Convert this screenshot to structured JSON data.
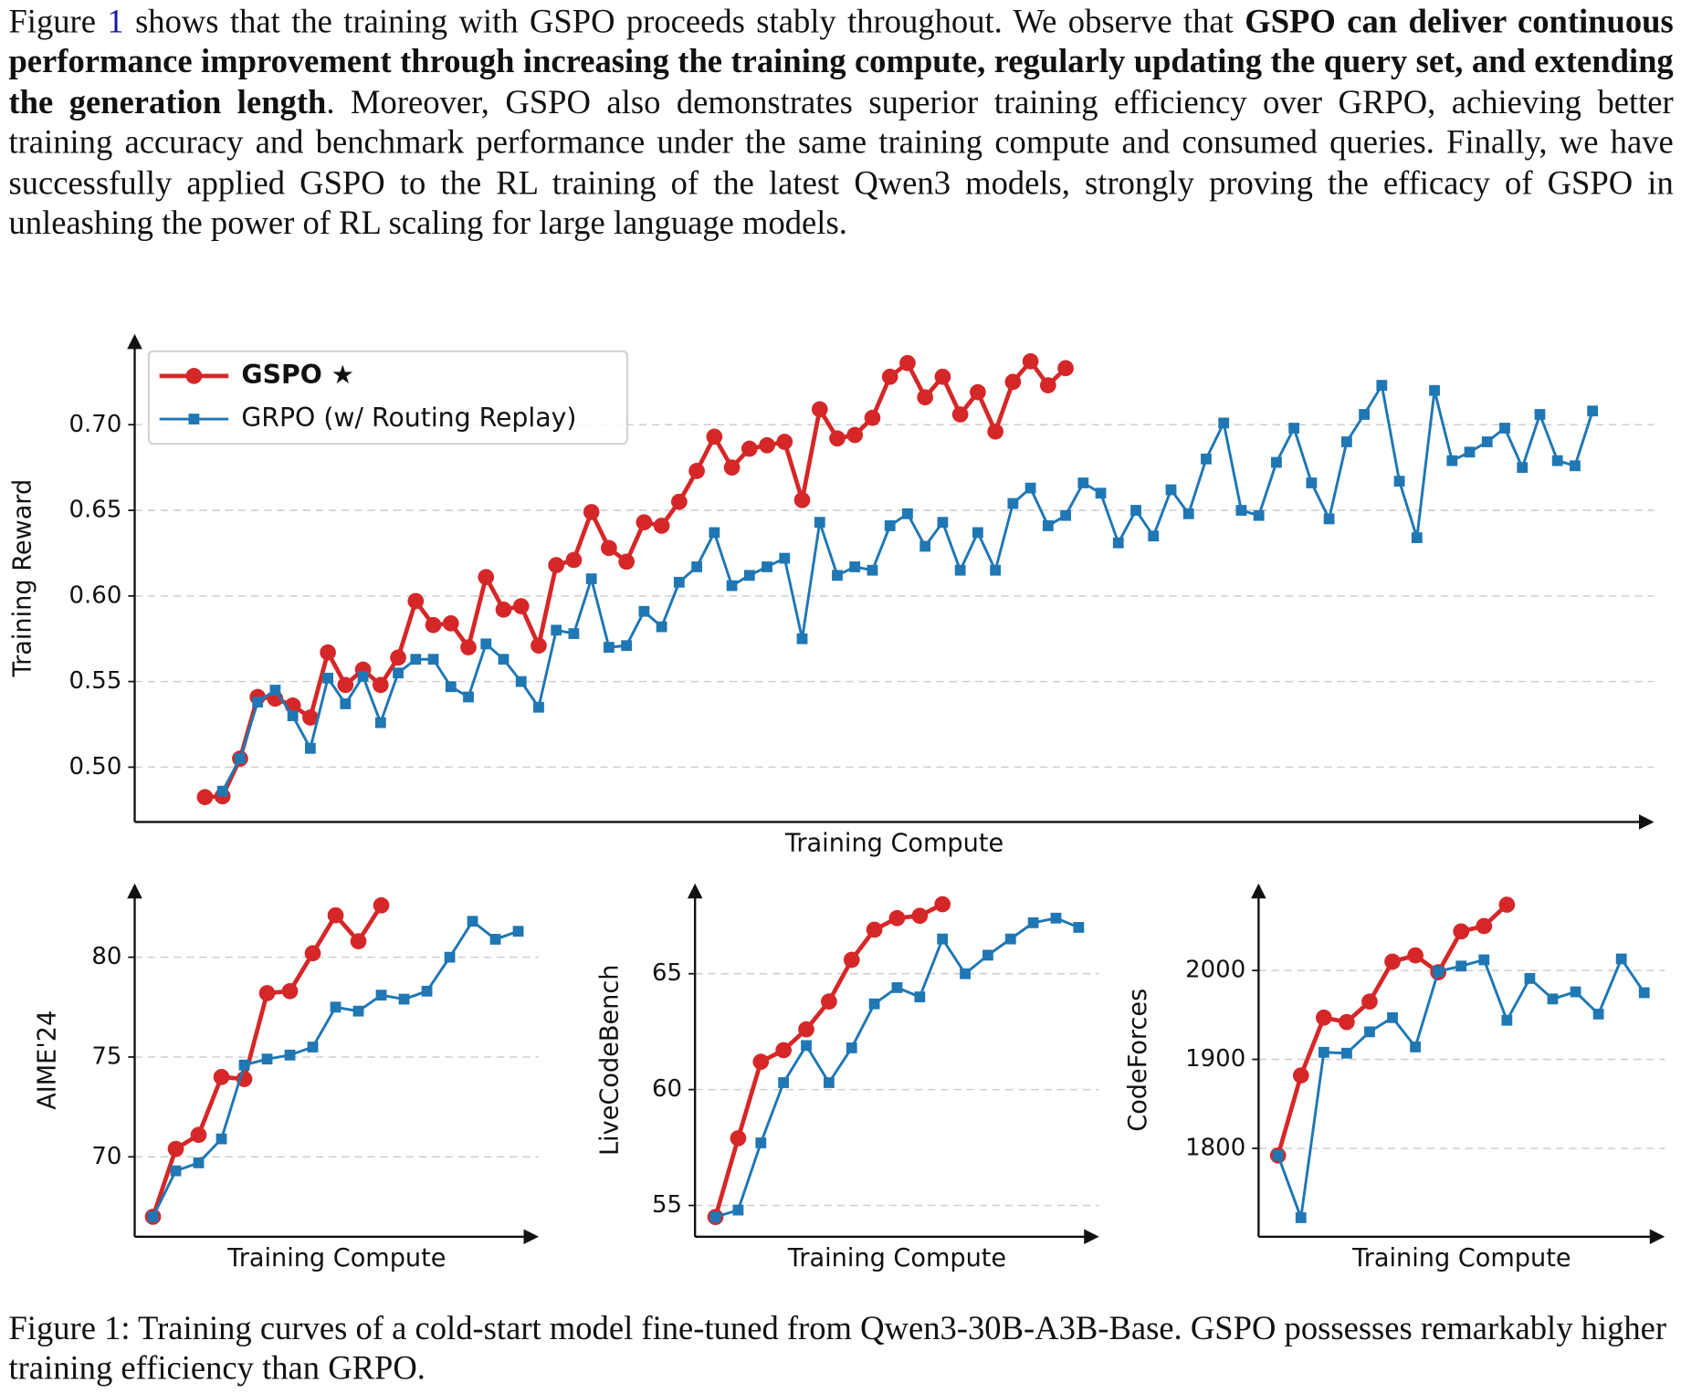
{
  "text": {
    "paragraph": [
      "Figure ",
      "1",
      " shows that the training with GSPO proceeds stably throughout. We observe that ",
      "GSPO can deliver continuous performance improvement through increasing the training compute, regularly updating the query set, and extending the generation length",
      ". Moreover, GSPO also demonstrates superior training efficiency over GRPO, achieving better training accuracy and benchmark performance under the same training compute and consumed queries. Finally, we have successfully applied GSPO to the RL training of the latest Qwen3 models, strongly proving the efficacy of GSPO in unleashing the power of RL scaling for large language models."
    ],
    "caption": "Figure 1: Training curves of a cold-start model fine-tuned from Qwen3-30B-A3B-Base. GSPO possesses remarkably higher training efficiency than GRPO."
  },
  "chart_data": [
    {
      "type": "line",
      "xlabel": "Training Compute",
      "ylabel": "Training Reward",
      "legend": "upper left",
      "grid": true,
      "x": [
        0,
        1,
        2,
        3,
        4,
        5,
        6,
        7,
        8,
        9,
        10,
        11,
        12,
        13,
        14,
        15,
        16,
        17,
        18,
        19,
        20,
        21,
        22,
        23,
        24,
        25,
        26,
        27,
        28,
        29,
        30,
        31,
        32,
        33,
        34,
        35,
        36,
        37,
        38,
        39,
        40,
        41,
        42,
        43,
        44,
        45,
        46,
        47,
        48,
        49,
        50,
        51,
        52,
        53,
        54,
        55,
        56,
        57,
        58,
        59,
        60,
        61,
        62,
        63,
        64,
        65,
        66,
        67,
        68,
        69,
        70,
        71,
        72,
        73,
        74,
        75,
        76,
        77,
        78,
        79
      ],
      "xlim": [
        -4,
        82.5
      ],
      "ylim": [
        0.468,
        0.753
      ],
      "yticks": [
        {
          "value": 0.5,
          "label": "0.50"
        },
        0.55,
        {
          "value": 0.6,
          "label": "0.60"
        },
        0.65,
        {
          "value": 0.7,
          "label": "0.70"
        }
      ],
      "series": [
        {
          "name": "GSPO ★",
          "color": "#d62728",
          "marker": "o",
          "values": [
            0.4825,
            0.483,
            0.505,
            0.541,
            0.54,
            0.536,
            0.529,
            0.567,
            0.548,
            0.557,
            0.548,
            0.564,
            0.597,
            0.583,
            0.584,
            0.57,
            0.611,
            0.592,
            0.594,
            0.571,
            0.618,
            0.621,
            0.649,
            0.628,
            0.62,
            0.643,
            0.641,
            0.655,
            0.673,
            0.693,
            0.675,
            0.686,
            0.688,
            0.69,
            0.656,
            0.709,
            0.692,
            0.694,
            0.704,
            0.728,
            0.736,
            0.716,
            0.728,
            0.706,
            0.719,
            0.696,
            0.725,
            0.737,
            0.723,
            0.733,
            null,
            null,
            null,
            null,
            null,
            null,
            null,
            null,
            null,
            null,
            null,
            null,
            null,
            null,
            null,
            null,
            null,
            null,
            null,
            null,
            null,
            null,
            null,
            null,
            null,
            null,
            null,
            null,
            null,
            null
          ]
        },
        {
          "name": "GRPO (w/ Routing Replay)",
          "color": "#1f77b4",
          "marker": "s",
          "values": [
            null,
            0.486,
            0.505,
            0.538,
            0.545,
            0.53,
            0.511,
            0.552,
            0.537,
            0.553,
            0.526,
            0.555,
            0.563,
            0.563,
            0.547,
            0.541,
            0.572,
            0.563,
            0.55,
            0.535,
            0.58,
            0.578,
            0.61,
            0.57,
            0.571,
            0.591,
            0.582,
            0.608,
            0.617,
            0.637,
            0.606,
            0.612,
            0.617,
            0.622,
            0.575,
            0.643,
            0.612,
            0.617,
            0.615,
            0.641,
            0.648,
            0.629,
            0.643,
            0.615,
            0.637,
            0.615,
            0.654,
            0.663,
            0.641,
            0.647,
            0.666,
            0.66,
            0.631,
            0.65,
            0.635,
            0.662,
            0.648,
            0.68,
            0.701,
            0.65,
            0.647,
            0.678,
            0.698,
            0.666,
            0.645,
            0.69,
            0.706,
            0.723,
            0.667,
            0.634,
            0.72,
            0.679,
            0.684,
            0.69,
            0.698,
            0.675,
            0.706,
            0.679,
            0.676,
            0.708
          ]
        }
      ]
    },
    {
      "type": "line",
      "xlabel": "Training Compute",
      "ylabel": "AIME'24",
      "grid": true,
      "x": [
        0,
        1,
        2,
        3,
        4,
        5,
        6,
        7,
        8,
        9,
        10,
        11,
        12,
        13,
        14,
        15,
        16
      ],
      "xlim": [
        -0.8,
        16.9
      ],
      "ylim": [
        66.0,
        83.7
      ],
      "yticks": [
        70,
        75,
        80
      ],
      "series": [
        {
          "color": "#d62728",
          "marker": "o",
          "values": [
            67.0,
            70.4,
            71.1,
            74.0,
            73.9,
            78.2,
            78.3,
            80.2,
            82.1,
            80.8,
            82.6,
            null,
            null,
            null,
            null,
            null,
            null
          ]
        },
        {
          "color": "#1f77b4",
          "marker": "s",
          "values": [
            67.0,
            69.3,
            69.7,
            70.9,
            74.6,
            74.9,
            75.1,
            75.5,
            77.5,
            77.3,
            78.1,
            77.9,
            78.3,
            80.0,
            81.8,
            80.9,
            81.3
          ]
        }
      ]
    },
    {
      "type": "line",
      "xlabel": "Training Compute",
      "ylabel": "LiveCodeBench",
      "grid": true,
      "x": [
        0,
        1,
        2,
        3,
        4,
        5,
        6,
        7,
        8,
        9,
        10,
        11,
        12,
        13,
        14,
        15,
        16
      ],
      "xlim": [
        -0.9,
        16.9
      ],
      "ylim": [
        53.65,
        68.9
      ],
      "yticks": [
        55,
        60,
        65
      ],
      "series": [
        {
          "color": "#d62728",
          "marker": "o",
          "values": [
            54.5,
            57.9,
            61.2,
            61.7,
            62.6,
            63.8,
            65.6,
            66.9,
            67.4,
            67.5,
            68.0,
            null,
            null,
            null,
            null,
            null,
            null
          ]
        },
        {
          "color": "#1f77b4",
          "marker": "s",
          "values": [
            54.5,
            54.8,
            57.7,
            60.3,
            61.9,
            60.3,
            61.8,
            63.7,
            64.4,
            64.0,
            66.5,
            65.0,
            65.8,
            66.5,
            67.2,
            67.4,
            67.0
          ]
        }
      ]
    },
    {
      "type": "line",
      "xlabel": "Training Compute",
      "ylabel": "CodeForces",
      "grid": true,
      "x": [
        0,
        1,
        2,
        3,
        4,
        5,
        6,
        7,
        8,
        9,
        10,
        11,
        12,
        13,
        14,
        15,
        16
      ],
      "xlim": [
        -0.85,
        16.9
      ],
      "ylim": [
        1700.6,
        2098
      ],
      "yticks": [
        1800,
        1900,
        2000
      ],
      "series": [
        {
          "color": "#d62728",
          "marker": "o",
          "values": [
            1792,
            1882,
            1947,
            1942,
            1965,
            2010,
            2017,
            1998,
            2044,
            2050,
            2074,
            null,
            null,
            null,
            null,
            null,
            null
          ]
        },
        {
          "color": "#1f77b4",
          "marker": "s",
          "values": [
            1792,
            1722,
            1908,
            1907,
            1931,
            1947,
            1914,
            1999,
            2005,
            2012,
            1944,
            1991,
            1968,
            1976,
            1951,
            2013,
            1975
          ]
        }
      ]
    }
  ]
}
